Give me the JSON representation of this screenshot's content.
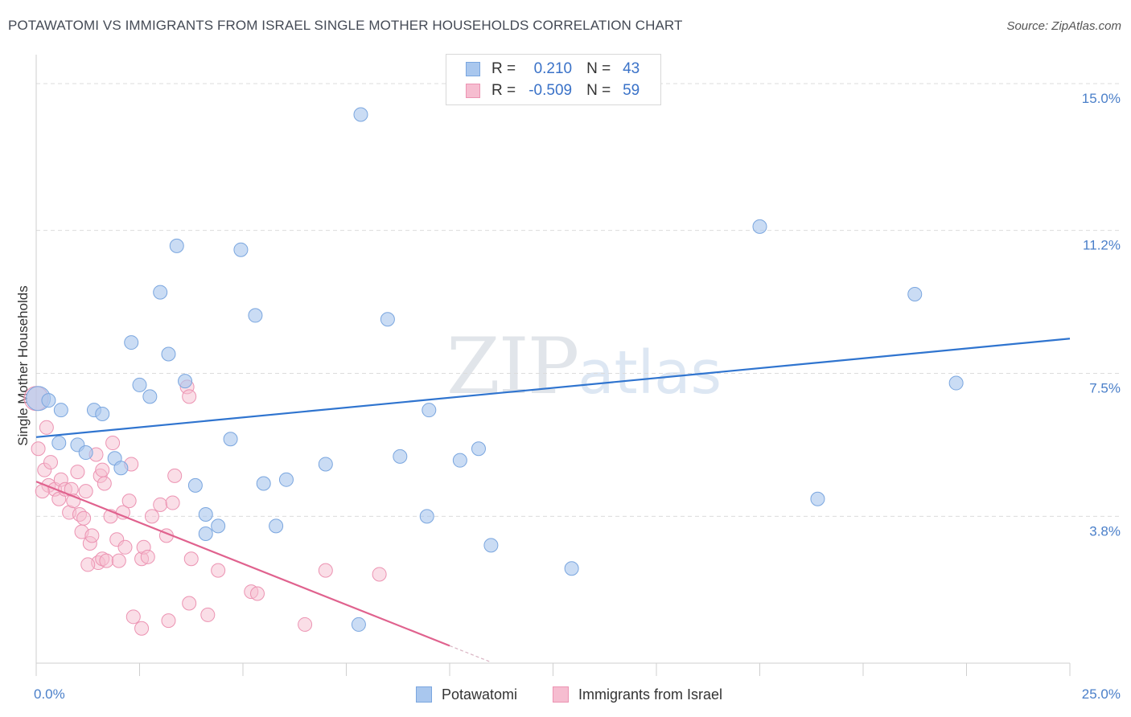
{
  "title": "POTAWATOMI VS IMMIGRANTS FROM ISRAEL SINGLE MOTHER HOUSEHOLDS CORRELATION CHART",
  "source": "Source: ZipAtlas.com",
  "watermark": {
    "zip": "ZIP",
    "atlas": "atlas"
  },
  "legend": {
    "series1": {
      "r_label": "R =",
      "r_value": "0.210",
      "n_label": "N =",
      "n_value": "43"
    },
    "series2": {
      "r_label": "R =",
      "r_value": "-0.509",
      "n_label": "N =",
      "n_value": "59"
    }
  },
  "bottom_legend": {
    "series1": "Potawatomi",
    "series2": "Immigrants from Israel"
  },
  "colors": {
    "blue_fill": "#a9c7ee",
    "blue_stroke": "#7aa6df",
    "blue_line": "#2f74cf",
    "pink_fill": "#f6bdd0",
    "pink_stroke": "#ec93b2",
    "pink_line": "#e0628e",
    "grid": "#dcdcdc",
    "tick_text": "#4a7fc9"
  },
  "chart_data": {
    "type": "scatter",
    "title": "POTAWATOMI VS IMMIGRANTS FROM ISRAEL SINGLE MOTHER HOUSEHOLDS CORRELATION CHART",
    "xlabel": "",
    "ylabel": "Single Mother Households",
    "xlim": [
      0,
      25
    ],
    "ylim": [
      0,
      15.5
    ],
    "x_tick_labels": [
      "0.0%",
      "25.0%"
    ],
    "y_ticks": [
      3.8,
      7.5,
      11.2,
      15.0
    ],
    "y_tick_labels": [
      "3.8%",
      "7.5%",
      "11.2%",
      "15.0%"
    ],
    "series": [
      {
        "name": "Potawatomi",
        "r": 0.21,
        "n": 43,
        "points": [
          [
            0.05,
            6.85
          ],
          [
            0.3,
            6.8
          ],
          [
            0.6,
            6.55
          ],
          [
            1.4,
            6.55
          ],
          [
            1.6,
            6.45
          ],
          [
            0.55,
            5.7
          ],
          [
            1.0,
            5.65
          ],
          [
            1.2,
            5.45
          ],
          [
            1.9,
            5.3
          ],
          [
            2.05,
            5.05
          ],
          [
            2.3,
            8.3
          ],
          [
            2.5,
            7.2
          ],
          [
            2.75,
            6.9
          ],
          [
            3.0,
            9.6
          ],
          [
            3.2,
            8.0
          ],
          [
            3.4,
            10.8
          ],
          [
            3.6,
            7.3
          ],
          [
            3.85,
            4.6
          ],
          [
            4.1,
            3.85
          ],
          [
            4.1,
            3.35
          ],
          [
            4.4,
            3.55
          ],
          [
            4.7,
            5.8
          ],
          [
            4.95,
            10.7
          ],
          [
            5.3,
            9.0
          ],
          [
            5.5,
            4.65
          ],
          [
            5.8,
            3.55
          ],
          [
            6.05,
            4.75
          ],
          [
            7.0,
            5.15
          ],
          [
            7.8,
            1.0
          ],
          [
            7.85,
            14.2
          ],
          [
            8.5,
            8.9
          ],
          [
            8.8,
            5.35
          ],
          [
            9.45,
            3.8
          ],
          [
            9.5,
            6.55
          ],
          [
            10.25,
            5.25
          ],
          [
            10.7,
            5.55
          ],
          [
            11.0,
            3.05
          ],
          [
            12.95,
            2.45
          ],
          [
            14.3,
            15.05
          ],
          [
            17.5,
            11.3
          ],
          [
            18.9,
            4.25
          ],
          [
            21.25,
            9.55
          ],
          [
            22.25,
            7.25
          ]
        ]
      },
      {
        "name": "Immigrants from Israel",
        "r": -0.509,
        "n": 59,
        "points": [
          [
            0.0,
            6.85
          ],
          [
            0.05,
            5.55
          ],
          [
            0.2,
            5.0
          ],
          [
            0.25,
            6.1
          ],
          [
            0.35,
            5.2
          ],
          [
            0.3,
            4.6
          ],
          [
            0.45,
            4.5
          ],
          [
            0.55,
            4.25
          ],
          [
            0.6,
            4.75
          ],
          [
            0.7,
            4.5
          ],
          [
            0.8,
            3.9
          ],
          [
            0.85,
            4.5
          ],
          [
            0.9,
            4.2
          ],
          [
            1.0,
            4.95
          ],
          [
            1.05,
            3.85
          ],
          [
            1.1,
            3.4
          ],
          [
            1.15,
            3.75
          ],
          [
            1.2,
            4.45
          ],
          [
            1.3,
            3.1
          ],
          [
            1.35,
            3.3
          ],
          [
            1.45,
            5.4
          ],
          [
            1.5,
            2.6
          ],
          [
            1.55,
            4.85
          ],
          [
            1.6,
            2.7
          ],
          [
            1.6,
            5.0
          ],
          [
            1.65,
            4.65
          ],
          [
            1.7,
            2.65
          ],
          [
            1.8,
            3.8
          ],
          [
            1.85,
            5.7
          ],
          [
            1.95,
            3.2
          ],
          [
            2.0,
            2.65
          ],
          [
            2.1,
            3.9
          ],
          [
            2.15,
            3.0
          ],
          [
            2.25,
            4.2
          ],
          [
            2.3,
            5.15
          ],
          [
            2.35,
            1.2
          ],
          [
            2.55,
            0.9
          ],
          [
            2.55,
            2.7
          ],
          [
            2.6,
            3.0
          ],
          [
            2.7,
            2.75
          ],
          [
            2.8,
            3.8
          ],
          [
            3.0,
            4.1
          ],
          [
            3.15,
            3.3
          ],
          [
            3.2,
            1.1
          ],
          [
            3.3,
            4.15
          ],
          [
            3.35,
            4.85
          ],
          [
            3.65,
            7.15
          ],
          [
            3.7,
            6.9
          ],
          [
            3.7,
            1.55
          ],
          [
            3.75,
            2.7
          ],
          [
            4.15,
            1.25
          ],
          [
            4.4,
            2.4
          ],
          [
            5.2,
            1.85
          ],
          [
            5.35,
            1.8
          ],
          [
            6.5,
            1.0
          ],
          [
            7.0,
            2.4
          ],
          [
            8.3,
            2.3
          ],
          [
            0.15,
            4.45
          ],
          [
            1.25,
            2.55
          ]
        ]
      }
    ],
    "trend_lines": [
      {
        "series": "Potawatomi",
        "x": [
          0,
          25
        ],
        "y": [
          5.85,
          8.4
        ]
      },
      {
        "series": "Immigrants from Israel",
        "x": [
          0,
          10.0
        ],
        "y": [
          4.7,
          0.45
        ],
        "dashed_extension_to_x": 11.0
      }
    ]
  }
}
